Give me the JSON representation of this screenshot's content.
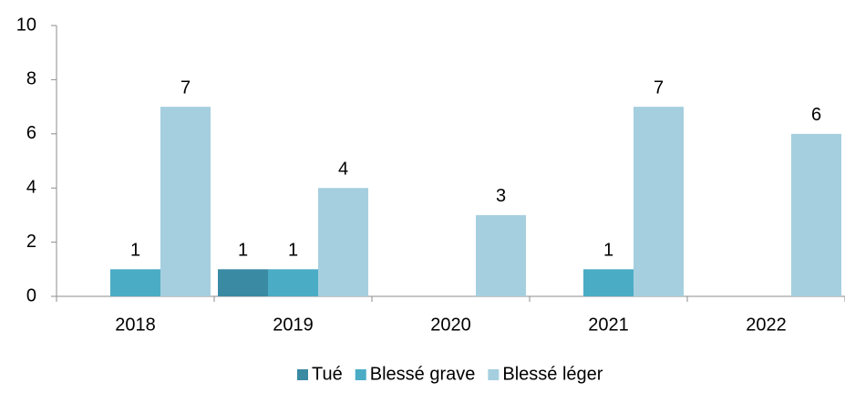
{
  "chart_data": {
    "type": "bar",
    "categories": [
      "2018",
      "2019",
      "2020",
      "2021",
      "2022"
    ],
    "series": [
      {
        "name": "Tué",
        "color": "#3a8aa3",
        "values": [
          0,
          1,
          0,
          0,
          0
        ]
      },
      {
        "name": "Blessé grave",
        "color": "#4bacc6",
        "values": [
          1,
          1,
          0,
          1,
          0
        ]
      },
      {
        "name": "Blessé léger",
        "color": "#a5cfdf",
        "values": [
          7,
          4,
          3,
          7,
          6
        ]
      }
    ],
    "ylim": [
      0,
      10
    ],
    "yticks": [
      0,
      2,
      4,
      6,
      8,
      10
    ],
    "grid": false,
    "legend": "bottom"
  }
}
